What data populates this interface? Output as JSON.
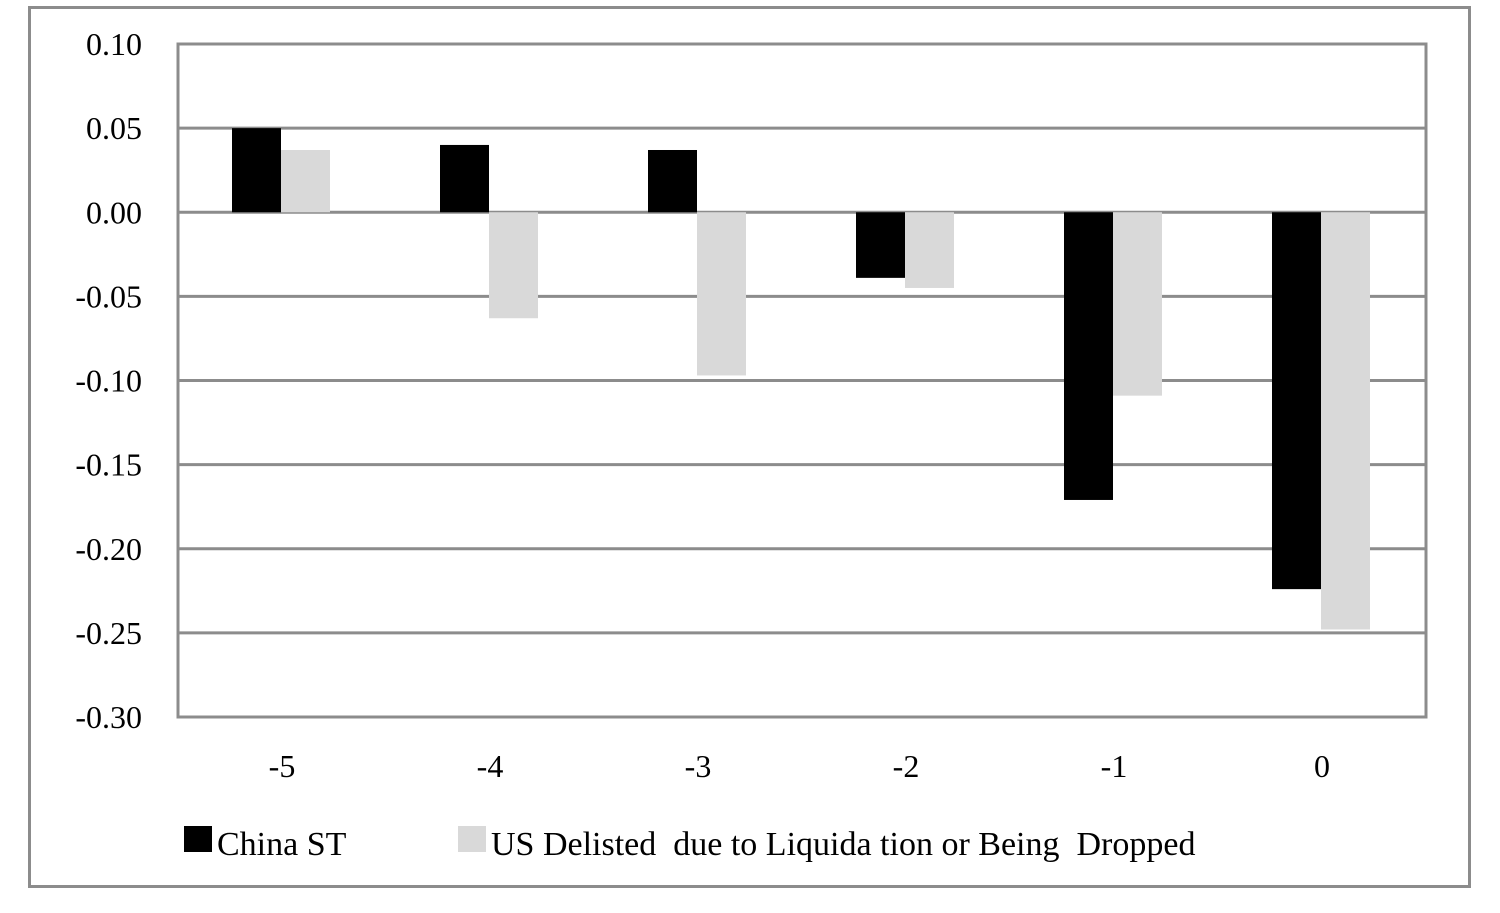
{
  "chart_data": {
    "type": "bar",
    "title": "",
    "xlabel": "",
    "ylabel": "",
    "categories": [
      "-5",
      "-4",
      "-3",
      "-2",
      "-1",
      "0"
    ],
    "ylim": [
      -0.3,
      0.1
    ],
    "yticks": [
      "0.10",
      "0.05",
      "0.00",
      "-0.05",
      "-0.10",
      "-0.15",
      "-0.20",
      "-0.25",
      "-0.30"
    ],
    "ytick_values": [
      0.1,
      0.05,
      0.0,
      -0.05,
      -0.1,
      -0.15,
      -0.2,
      -0.25,
      -0.3
    ],
    "grid": true,
    "legend_position": "bottom",
    "series": [
      {
        "name": "China ST",
        "color": "#000000",
        "values": [
          0.05,
          0.04,
          0.037,
          -0.039,
          -0.171,
          -0.224
        ]
      },
      {
        "name": "US Delisted  due to Liquida tion or Being  Dropped",
        "color": "#d9d9d9",
        "values": [
          0.037,
          -0.063,
          -0.097,
          -0.045,
          -0.109,
          -0.248
        ]
      }
    ]
  }
}
